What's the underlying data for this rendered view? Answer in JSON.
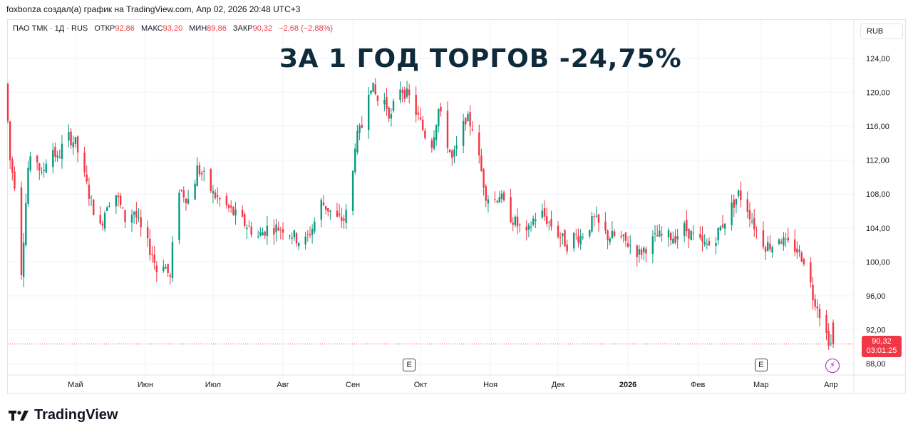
{
  "header": {
    "attribution": "foxbonza создал(а) график на TradingView.com, Апр 02, 2026 20:48 UTC+3"
  },
  "legend": {
    "symbol": "ПАО ТМК · 1Д · RUS",
    "open_label": "ОТКР",
    "open_value": "92,86",
    "high_label": "МАКС",
    "high_value": "93,20",
    "low_label": "МИН",
    "low_value": "89,86",
    "close_label": "ЗАКР",
    "close_value": "90,32",
    "change": "−2,68 (−2,88%)"
  },
  "currency_button": "RUB",
  "overlay_title": "ЗА 1 ГОД ТОРГОВ -24,75%",
  "last_price": {
    "price": "90,32",
    "countdown": "03:01:25"
  },
  "event_markers": [
    {
      "label": "E"
    },
    {
      "label": "E"
    }
  ],
  "footer": {
    "brand": "TradingView"
  },
  "colors": {
    "up": "#089981",
    "down": "#f23645",
    "grid": "#f0f3fa",
    "title": "#0f2a3a",
    "dividend_marker": "#9c27b0"
  },
  "chart_data": {
    "type": "candlestick",
    "title": "ЗА 1 ГОД ТОРГОВ -24,75%",
    "xlabel": "",
    "ylabel": "",
    "ylim": [
      86.5,
      126
    ],
    "grid": true,
    "y_ticks": [
      88,
      92,
      96,
      100,
      104,
      108,
      112,
      116,
      120,
      124
    ],
    "y_tick_labels": [
      "88,00",
      "92,00",
      "96,00",
      "100,00",
      "104,00",
      "108,00",
      "112,00",
      "116,00",
      "120,00",
      "124,00"
    ],
    "x_tick_labels": [
      "Май",
      "Июн",
      "Июл",
      "Авг",
      "Сен",
      "Окт",
      "Ноя",
      "Дек",
      "2026",
      "Фев",
      "Мар",
      "Апр"
    ],
    "x_tick_dates": [
      "2025-05-01",
      "2025-06-01",
      "2025-07-01",
      "2025-08-01",
      "2025-09-01",
      "2025-10-01",
      "2025-11-01",
      "2025-12-01",
      "2026-01-01",
      "2026-02-01",
      "2026-03-01",
      "2026-04-01"
    ],
    "date_range": [
      "2025-04-01",
      "2026-04-02"
    ],
    "close_path": [
      [
        "2025-04-01",
        121
      ],
      [
        "2025-04-03",
        112
      ],
      [
        "2025-04-06",
        108
      ],
      [
        "2025-04-08",
        99
      ],
      [
        "2025-04-11",
        111
      ],
      [
        "2025-04-14",
        113
      ],
      [
        "2025-04-17",
        110
      ],
      [
        "2025-04-21",
        114
      ],
      [
        "2025-04-24",
        112
      ],
      [
        "2025-04-28",
        115
      ],
      [
        "2025-05-02",
        114
      ],
      [
        "2025-05-06",
        110
      ],
      [
        "2025-05-09",
        107
      ],
      [
        "2025-05-13",
        104
      ],
      [
        "2025-05-16",
        107
      ],
      [
        "2025-05-20",
        108
      ],
      [
        "2025-05-24",
        105
      ],
      [
        "2025-05-28",
        106
      ],
      [
        "2025-06-01",
        103
      ],
      [
        "2025-06-05",
        101
      ],
      [
        "2025-06-07",
        99
      ],
      [
        "2025-06-10",
        100
      ],
      [
        "2025-06-13",
        98
      ],
      [
        "2025-06-16",
        109
      ],
      [
        "2025-06-19",
        108
      ],
      [
        "2025-06-22",
        107
      ],
      [
        "2025-06-25",
        111
      ],
      [
        "2025-06-28",
        110
      ],
      [
        "2025-07-02",
        108
      ],
      [
        "2025-07-06",
        107
      ],
      [
        "2025-07-10",
        106
      ],
      [
        "2025-07-14",
        105
      ],
      [
        "2025-07-18",
        104
      ],
      [
        "2025-07-22",
        103
      ],
      [
        "2025-07-26",
        104
      ],
      [
        "2025-07-30",
        104
      ],
      [
        "2025-08-03",
        104
      ],
      [
        "2025-08-07",
        103
      ],
      [
        "2025-08-11",
        102
      ],
      [
        "2025-08-15",
        104
      ],
      [
        "2025-08-19",
        107
      ],
      [
        "2025-08-23",
        106
      ],
      [
        "2025-08-26",
        105
      ],
      [
        "2025-08-29",
        105
      ],
      [
        "2025-09-01",
        107
      ],
      [
        "2025-09-03",
        114
      ],
      [
        "2025-09-06",
        116
      ],
      [
        "2025-09-08",
        120
      ],
      [
        "2025-09-10",
        121
      ],
      [
        "2025-09-13",
        119
      ],
      [
        "2025-09-16",
        119
      ],
      [
        "2025-09-19",
        117
      ],
      [
        "2025-09-22",
        121
      ],
      [
        "2025-09-25",
        120
      ],
      [
        "2025-09-28",
        119
      ],
      [
        "2025-10-01",
        117
      ],
      [
        "2025-10-04",
        115
      ],
      [
        "2025-10-07",
        114
      ],
      [
        "2025-10-10",
        118
      ],
      [
        "2025-10-13",
        115
      ],
      [
        "2025-10-16",
        112
      ],
      [
        "2025-10-19",
        114
      ],
      [
        "2025-10-22",
        117
      ],
      [
        "2025-10-25",
        116
      ],
      [
        "2025-10-28",
        112
      ],
      [
        "2025-10-31",
        108
      ],
      [
        "2025-11-03",
        107
      ],
      [
        "2025-11-06",
        108
      ],
      [
        "2025-11-09",
        106
      ],
      [
        "2025-11-12",
        105
      ],
      [
        "2025-11-15",
        104
      ],
      [
        "2025-11-18",
        103
      ],
      [
        "2025-11-21",
        105
      ],
      [
        "2025-11-24",
        106
      ],
      [
        "2025-11-27",
        105
      ],
      [
        "2025-11-30",
        104
      ],
      [
        "2025-12-03",
        103
      ],
      [
        "2025-12-06",
        102
      ],
      [
        "2025-12-09",
        103
      ],
      [
        "2025-12-12",
        103
      ],
      [
        "2025-12-15",
        104
      ],
      [
        "2025-12-18",
        105
      ],
      [
        "2025-12-21",
        104
      ],
      [
        "2025-12-24",
        103
      ],
      [
        "2025-12-28",
        103
      ],
      [
        "2026-01-03",
        102
      ],
      [
        "2026-01-07",
        101
      ],
      [
        "2026-01-11",
        102
      ],
      [
        "2026-01-15",
        103
      ],
      [
        "2026-01-19",
        103
      ],
      [
        "2026-01-23",
        103
      ],
      [
        "2026-01-27",
        104
      ],
      [
        "2026-01-31",
        103
      ],
      [
        "2026-02-04",
        102
      ],
      [
        "2026-02-08",
        102
      ],
      [
        "2026-02-12",
        104
      ],
      [
        "2026-02-16",
        106
      ],
      [
        "2026-02-20",
        108
      ],
      [
        "2026-02-23",
        107
      ],
      [
        "2026-02-26",
        105
      ],
      [
        "2026-03-01",
        103
      ],
      [
        "2026-03-04",
        102
      ],
      [
        "2026-03-07",
        102
      ],
      [
        "2026-03-10",
        103
      ],
      [
        "2026-03-13",
        102
      ],
      [
        "2026-03-16",
        102
      ],
      [
        "2026-03-19",
        101
      ],
      [
        "2026-03-22",
        100
      ],
      [
        "2026-03-25",
        96
      ],
      [
        "2026-03-27",
        95
      ],
      [
        "2026-03-30",
        92
      ],
      [
        "2026-04-02",
        90.32
      ]
    ],
    "last_bar": {
      "date": "2026-04-02",
      "open": 92.86,
      "high": 93.2,
      "low": 89.86,
      "close": 90.32
    },
    "event_dates": [
      "2025-09-26",
      "2026-03-01"
    ],
    "dividend_date": "2026-03-30"
  }
}
